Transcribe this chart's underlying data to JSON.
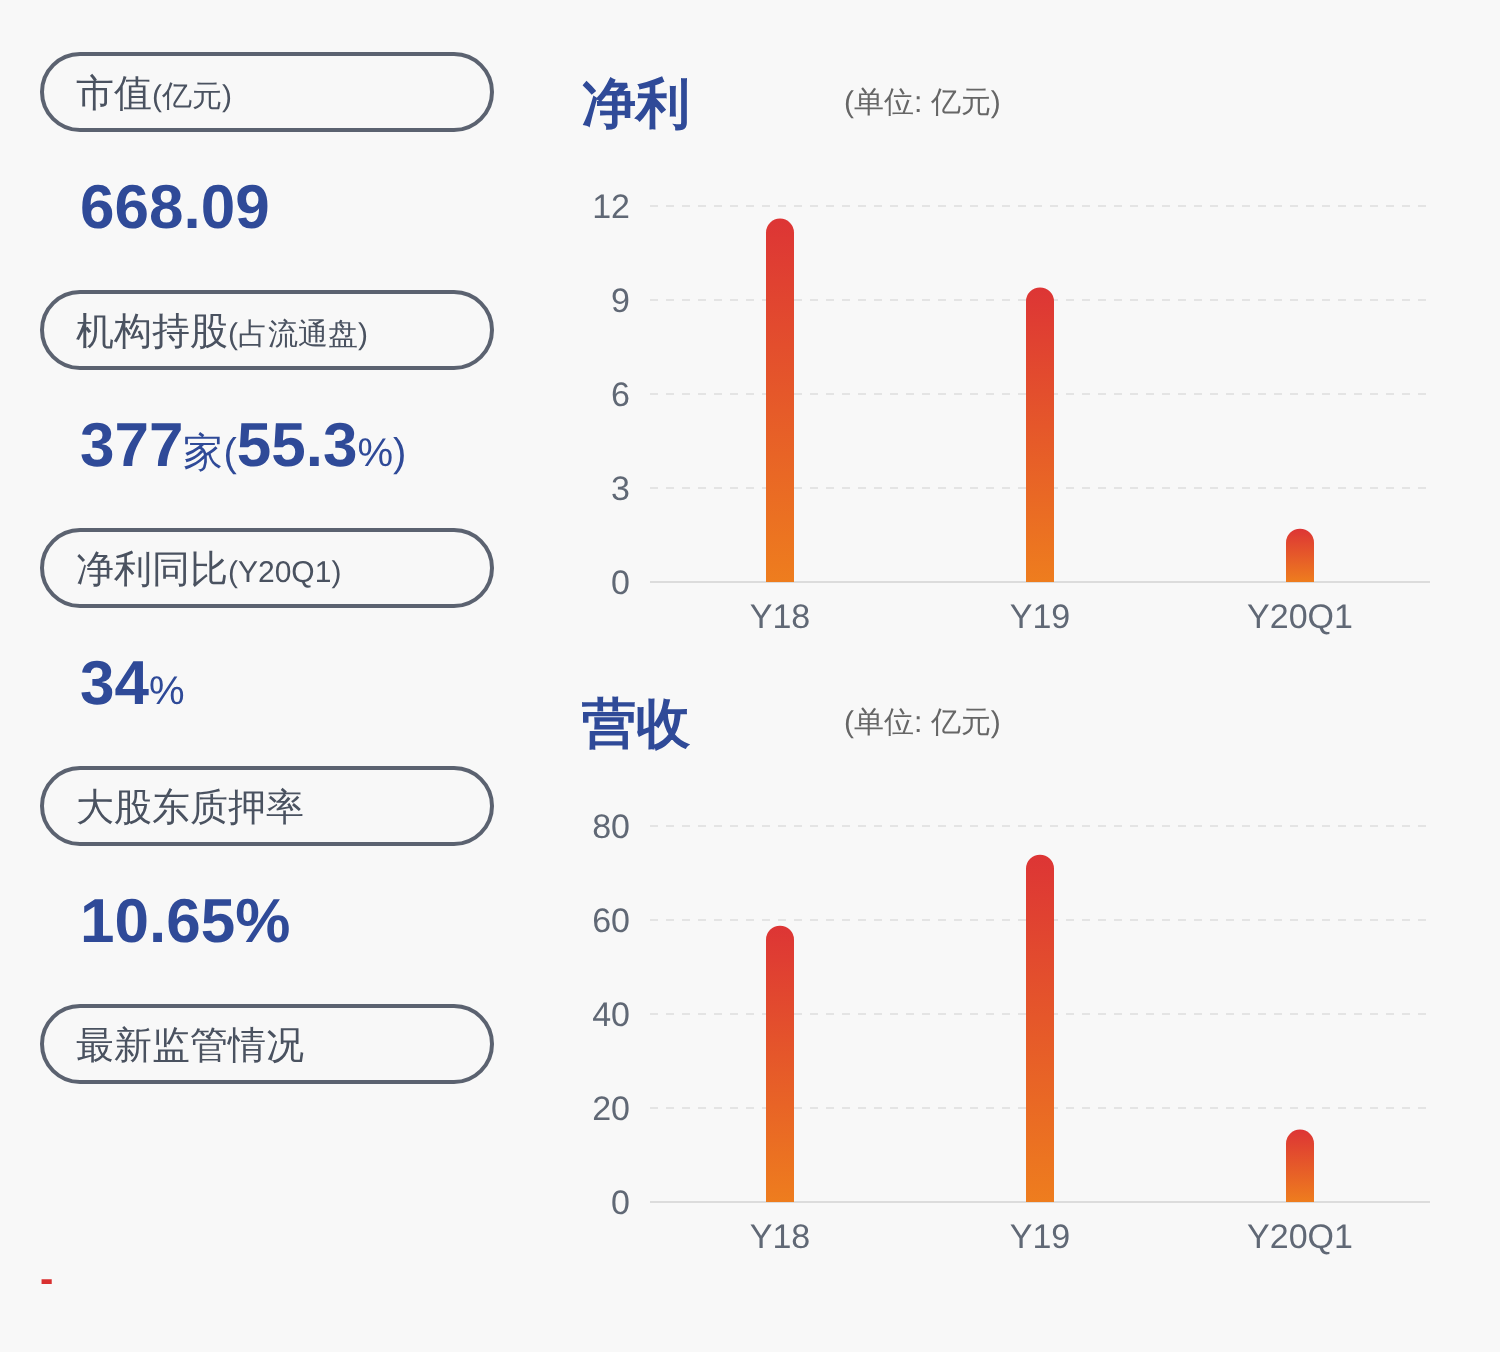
{
  "chart_data": [
    {
      "type": "other",
      "annotations": [
        "市值(亿元)",
        "668.09",
        "机构持股(占流通盘)",
        "377家(55.3%)",
        "净利同比(Y20Q1)",
        "34%",
        "大股东质押率",
        "10.65%",
        "最新监管情况",
        "-"
      ]
    },
    {
      "type": "bar",
      "title": "净利",
      "subtitle": "(单位: 亿元)",
      "categories": [
        "Y18",
        "Y19",
        "Y20Q1"
      ],
      "values": [
        11.6,
        9.4,
        1.7
      ],
      "color": "#dd3535",
      "ylim": [
        0,
        12
      ],
      "yticks": [
        0,
        3,
        6,
        9,
        12
      ],
      "grid": "y"
    },
    {
      "type": "bar",
      "title": "营收",
      "subtitle": "(单位: 亿元)",
      "categories": [
        "Y18",
        "Y19",
        "Y20Q1"
      ],
      "values": [
        58.8,
        73.9,
        15.4
      ],
      "color": "#dd3535",
      "ylim": [
        0,
        80
      ],
      "yticks": [
        0,
        20,
        40,
        60,
        80
      ],
      "grid": "y"
    }
  ]
}
